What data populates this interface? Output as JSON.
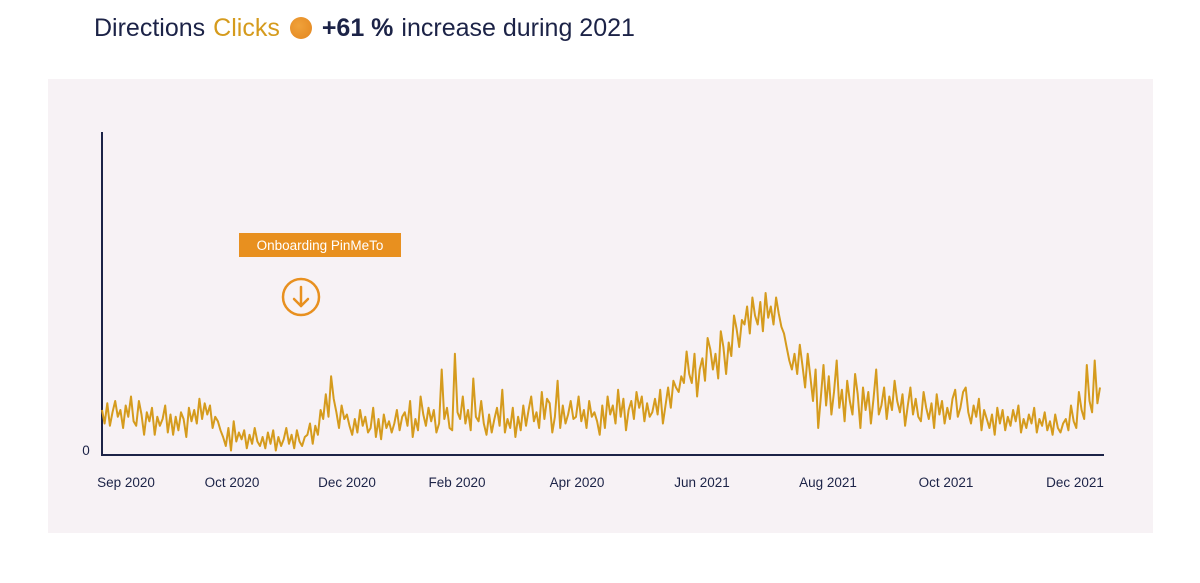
{
  "title": {
    "part1": "Directions",
    "part2": "Clicks",
    "part3": "+61 %",
    "part4": "increase during 2021"
  },
  "colors": {
    "line": "#d59b1d",
    "annotation": "#e8901f",
    "axis": "#1c2347",
    "panel": "#f7f2f5"
  },
  "chart_data": {
    "type": "line",
    "y_tick_labels": [
      "0"
    ],
    "x_tick_labels": [
      "Sep 2020",
      "Oct 2020",
      "Dec 2020",
      "Feb 2020",
      "Apr 2020",
      "Jun 2021",
      "Aug 2021",
      "Oct 2021",
      "Dec 2021"
    ],
    "annotation": {
      "label": "Onboarding PinMeTo",
      "icon": "arrow-down-circle-icon",
      "at_category": "Oct 2020",
      "at_fraction": 0.6
    },
    "grid": false,
    "legend": "none",
    "ylim": [
      0,
      100
    ],
    "values": [
      20,
      14,
      23,
      13,
      19,
      24,
      17,
      20,
      12,
      22,
      17,
      26,
      15,
      13,
      24,
      18,
      9,
      19,
      15,
      21,
      9,
      17,
      13,
      16,
      22,
      10,
      18,
      9,
      17,
      11,
      19,
      16,
      8,
      21,
      15,
      20,
      14,
      25,
      16,
      23,
      18,
      22,
      12,
      17,
      15,
      11,
      8,
      4,
      12,
      2,
      15,
      6,
      10,
      7,
      11,
      3,
      9,
      5,
      12,
      6,
      4,
      8,
      3,
      10,
      5,
      11,
      2,
      8,
      4,
      7,
      12,
      5,
      9,
      3,
      11,
      6,
      4,
      8,
      9,
      14,
      5,
      13,
      9,
      20,
      16,
      27,
      17,
      35,
      25,
      19,
      12,
      22,
      16,
      18,
      13,
      9,
      16,
      10,
      20,
      13,
      17,
      10,
      12,
      21,
      8,
      16,
      7,
      18,
      12,
      15,
      10,
      14,
      20,
      11,
      17,
      19,
      13,
      24,
      8,
      16,
      11,
      26,
      18,
      13,
      21,
      15,
      20,
      10,
      14,
      38,
      16,
      21,
      12,
      11,
      45,
      19,
      16,
      26,
      14,
      20,
      11,
      34,
      17,
      15,
      24,
      14,
      9,
      18,
      10,
      16,
      21,
      13,
      29,
      10,
      16,
      12,
      21,
      8,
      17,
      11,
      22,
      13,
      20,
      26,
      15,
      19,
      12,
      28,
      16,
      25,
      23,
      10,
      17,
      33,
      12,
      22,
      14,
      18,
      24,
      16,
      17,
      26,
      15,
      20,
      12,
      24,
      17,
      19,
      15,
      9,
      22,
      12,
      26,
      18,
      22,
      14,
      29,
      17,
      25,
      11,
      20,
      24,
      16,
      28,
      21,
      26,
      15,
      23,
      17,
      19,
      25,
      18,
      29,
      14,
      22,
      30,
      21,
      33,
      30,
      28,
      35,
      32,
      46,
      36,
      32,
      45,
      26,
      38,
      43,
      33,
      52,
      47,
      38,
      45,
      34,
      55,
      48,
      36,
      50,
      44,
      62,
      56,
      48,
      60,
      58,
      66,
      54,
      70,
      62,
      58,
      68,
      55,
      72,
      61,
      66,
      58,
      70,
      63,
      57,
      54,
      48,
      42,
      38,
      45,
      36,
      49,
      40,
      30,
      45,
      35,
      24,
      38,
      12,
      26,
      40,
      22,
      35,
      18,
      28,
      42,
      21,
      29,
      15,
      33,
      24,
      18,
      36,
      27,
      12,
      30,
      20,
      28,
      14,
      25,
      38,
      18,
      22,
      30,
      16,
      26,
      20,
      33,
      24,
      19,
      27,
      13,
      22,
      30,
      18,
      25,
      17,
      15,
      28,
      21,
      16,
      23,
      12,
      27,
      18,
      24,
      14,
      21,
      16,
      25,
      29,
      17,
      21,
      28,
      30,
      19,
      14,
      22,
      17,
      25,
      11,
      20,
      16,
      12,
      18,
      9,
      21,
      14,
      20,
      11,
      17,
      13,
      20,
      15,
      22,
      10,
      16,
      12,
      18,
      14,
      21,
      10,
      16,
      13,
      19,
      11,
      15,
      9,
      18,
      12,
      10,
      14,
      16,
      11,
      22,
      15,
      12,
      28,
      20,
      16,
      40,
      24,
      19,
      42,
      23,
      30
    ]
  }
}
